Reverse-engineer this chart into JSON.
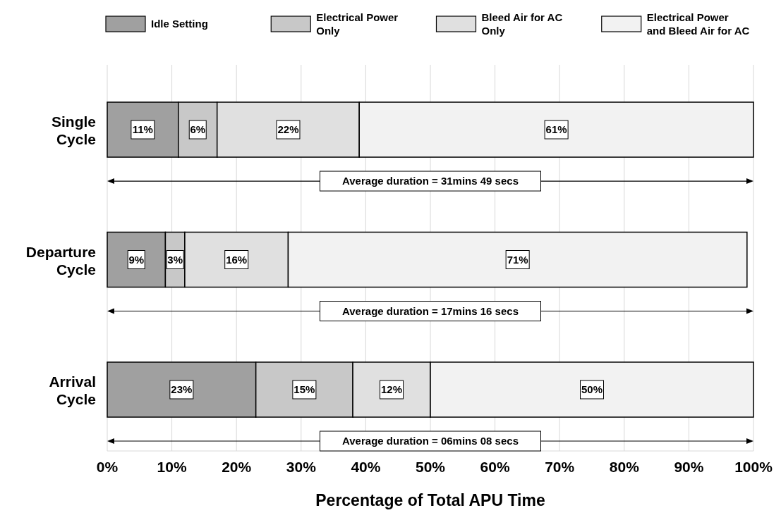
{
  "chart_data": {
    "type": "bar",
    "orientation": "horizontal",
    "stacked": true,
    "grid": "x",
    "legend": "top",
    "xlabel": "Percentage of Total APU Time",
    "categories": [
      "Single Cycle",
      "Departure Cycle",
      "Arrival Cycle"
    ],
    "series": [
      {
        "name": "Idle Setting",
        "color": "#a0a0a0",
        "values": [
          11,
          9,
          23
        ],
        "value_labels": [
          "11%",
          "9%",
          "23%"
        ]
      },
      {
        "name": "Electrical Power Only",
        "color": "#c8c8c8",
        "values": [
          6,
          3,
          15
        ],
        "value_labels": [
          "6%",
          "3%",
          "15%"
        ]
      },
      {
        "name": "Bleed Air for AC Only",
        "color": "#e0e0e0",
        "values": [
          22,
          16,
          12
        ],
        "value_labels": [
          "22%",
          "16%",
          "12%"
        ]
      },
      {
        "name": "Electrical Power and Bleed Air for AC",
        "color": "#f2f2f2",
        "values": [
          61,
          71,
          50
        ],
        "value_labels": [
          "61%",
          "71%",
          "50%"
        ]
      }
    ],
    "xlim": [
      0,
      100
    ],
    "xticks": [
      {
        "value": 0,
        "label": "0%"
      },
      {
        "value": 10,
        "label": "10%"
      },
      {
        "value": 20,
        "label": "20%"
      },
      {
        "value": 30,
        "label": "30%"
      },
      {
        "value": 40,
        "label": "40%"
      },
      {
        "value": 50,
        "label": "50%"
      },
      {
        "value": 60,
        "label": "60%"
      },
      {
        "value": 70,
        "label": "70%"
      },
      {
        "value": 80,
        "label": "80%"
      },
      {
        "value": 90,
        "label": "90%"
      },
      {
        "value": 100,
        "label": "100%"
      }
    ],
    "annotations": [
      "Average duration = 31mins 49 secs",
      "Average duration = 17mins 16 secs",
      "Average duration = 06mins 08 secs"
    ]
  }
}
